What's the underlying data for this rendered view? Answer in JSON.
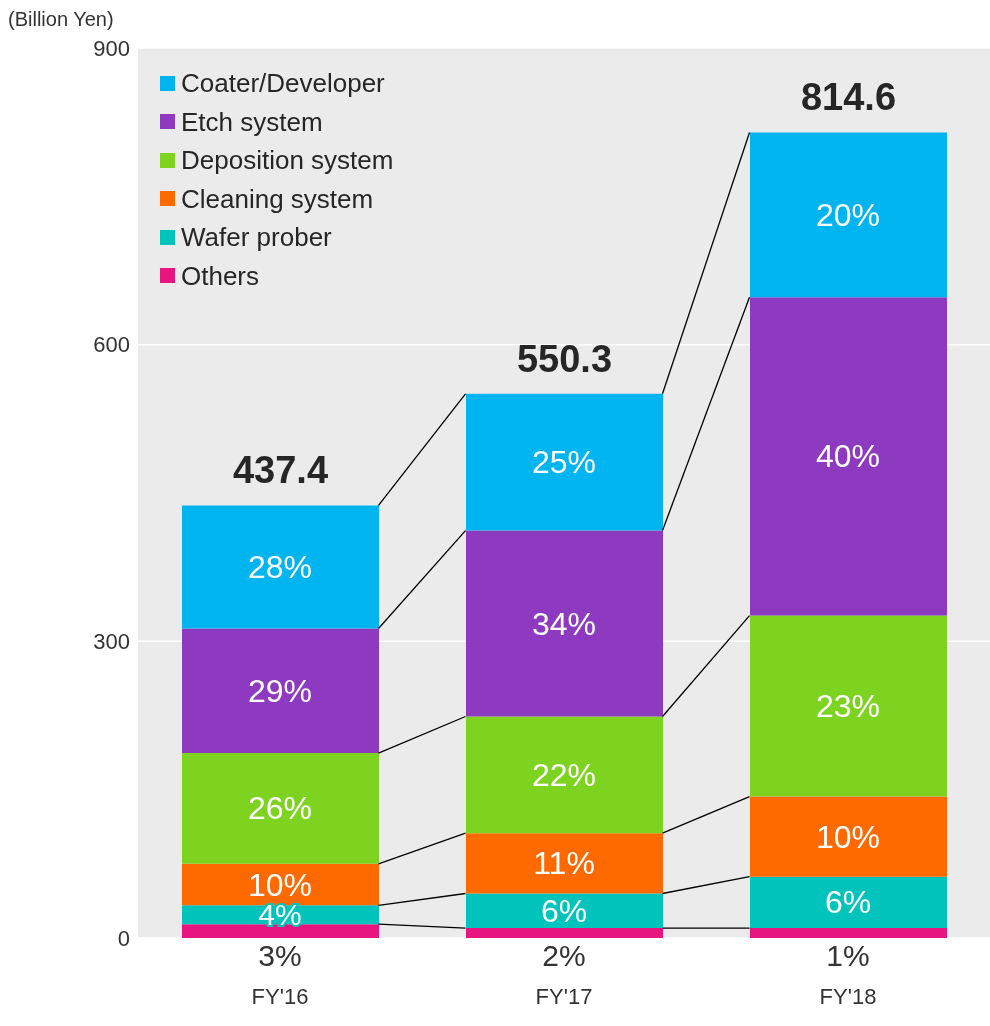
{
  "chart_data": {
    "type": "bar",
    "stacked": true,
    "ylabel": "(Billion Yen)",
    "categories": [
      "FY'16",
      "FY'17",
      "FY'18"
    ],
    "series": [
      {
        "name": "Others",
        "color": "#e6157f",
        "values": [
          14,
          10,
          10
        ]
      },
      {
        "name": "Wafer prober",
        "color": "#00c4bc",
        "values": [
          19,
          35,
          52
        ]
      },
      {
        "name": "Cleaning system",
        "color": "#ff6a00",
        "values": [
          42,
          61,
          81
        ]
      },
      {
        "name": "Deposition system",
        "color": "#7ed321",
        "values": [
          112,
          118,
          183
        ]
      },
      {
        "name": "Etch system",
        "color": "#8e3ac0",
        "values": [
          126,
          188,
          322
        ]
      },
      {
        "name": "Coater/Developer",
        "color": "#00b4f0",
        "values": [
          124.4,
          138.3,
          166.6
        ]
      }
    ],
    "annotations": [
      "3%",
      "4%",
      "10%",
      "26%",
      "29%",
      "28%",
      "2%",
      "6%",
      "11%",
      "22%",
      "34%",
      "25%",
      "1%",
      "6%",
      "10%",
      "23%",
      "40%",
      "20%"
    ],
    "totals": [
      "437.4",
      "550.3",
      "814.6"
    ],
    "ylim": [
      0,
      900
    ],
    "yticks": [
      0,
      300,
      600,
      900
    ],
    "grid": "y",
    "legend": "top left"
  }
}
